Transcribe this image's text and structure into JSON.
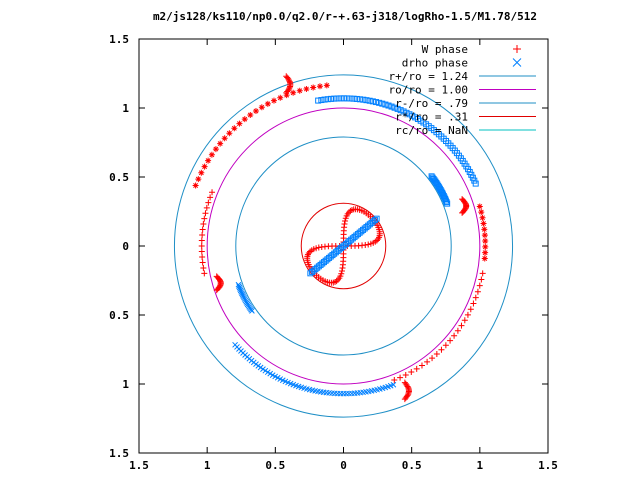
{
  "chart_data": {
    "type": "scatter",
    "title": "m2/js128/ks110/np0.0/q2.0/r-+.63-j318/logRho-1.5/M1.78/512",
    "xlim": [
      -1.5,
      1.5
    ],
    "ylim": [
      -1.5,
      1.5
    ],
    "x_ticks": [
      {
        "value": -1.5,
        "label": "1.5"
      },
      {
        "value": -1.0,
        "label": "1"
      },
      {
        "value": -0.5,
        "label": "0.5"
      },
      {
        "value": 0.0,
        "label": "0"
      },
      {
        "value": 0.5,
        "label": "0.5"
      },
      {
        "value": 1.0,
        "label": "1"
      },
      {
        "value": 1.5,
        "label": "1.5"
      }
    ],
    "y_ticks": [
      {
        "value": 1.5,
        "label": "1.5"
      },
      {
        "value": 1.0,
        "label": "1"
      },
      {
        "value": 0.5,
        "label": "0.5"
      },
      {
        "value": 0.0,
        "label": "0"
      },
      {
        "value": -0.5,
        "label": "0.5"
      },
      {
        "value": -1.0,
        "label": "1"
      },
      {
        "value": -1.5,
        "label": "1.5"
      }
    ],
    "legend_position": "top-right",
    "series": [
      {
        "name": "W phase",
        "kind": "points",
        "marker": "plus",
        "color": "#ff0000"
      },
      {
        "name": "drho phase",
        "kind": "points",
        "marker": "cross",
        "color": "#0080ff"
      }
    ],
    "circles": [
      {
        "label": "r+/ro = 1.24",
        "radius": 1.24,
        "color": "#1f8fc6"
      },
      {
        "label": "ro/ro = 1.00",
        "radius": 1.0,
        "color": "#c000c0"
      },
      {
        "label": "r-/ro = .79",
        "radius": 0.79,
        "color": "#1f8fc6"
      },
      {
        "label": "r*/ro = .31",
        "radius": 0.31,
        "color": "#e00000"
      },
      {
        "label": "rc/ro = NaN",
        "radius": null,
        "color": "#00c0c0"
      }
    ],
    "w_phase_arcs": [
      {
        "cx": 0.0,
        "cy": 0.0,
        "r": 1.17,
        "t0": 96,
        "t1": 158,
        "n": 26,
        "marker": "star"
      },
      {
        "cx": 0.0,
        "cy": 0.0,
        "r": 1.04,
        "t0": 158,
        "t1": 191,
        "n": 16,
        "marker": "plus"
      },
      {
        "cx": 0.0,
        "cy": 0.0,
        "r": 1.04,
        "t0": 349,
        "t1": 291,
        "n": 24,
        "marker": "plus"
      },
      {
        "cx": 0.0,
        "cy": 0.0,
        "r": 1.04,
        "t0": 16,
        "t1": -5,
        "n": 10,
        "marker": "star"
      }
    ],
    "w_phase_kinks": [
      {
        "x": -0.42,
        "y": 1.17,
        "len": 0.12
      },
      {
        "x": -0.93,
        "y": -0.27,
        "len": 0.1
      },
      {
        "x": 0.45,
        "y": -1.05,
        "len": 0.12
      },
      {
        "x": 0.87,
        "y": 0.29,
        "len": 0.1
      }
    ],
    "drho_phase_arcs": [
      {
        "cx": 0.0,
        "cy": 0.0,
        "r": 1.07,
        "t0": 100,
        "t1": 25,
        "n": 60
      },
      {
        "cx": 0.0,
        "cy": 0.0,
        "r": 1.07,
        "t0": 222,
        "t1": 290,
        "n": 62
      },
      {
        "cx": 0.0,
        "cy": 0.0,
        "r": 0.82,
        "t0": 38,
        "t1": 22,
        "n": 20
      },
      {
        "cx": 0.0,
        "cy": 0.0,
        "r": 0.82,
        "t0": 215,
        "t1": 200,
        "n": 20
      }
    ],
    "inner_figure8": {
      "amplitude": 0.29,
      "n": 90
    }
  }
}
